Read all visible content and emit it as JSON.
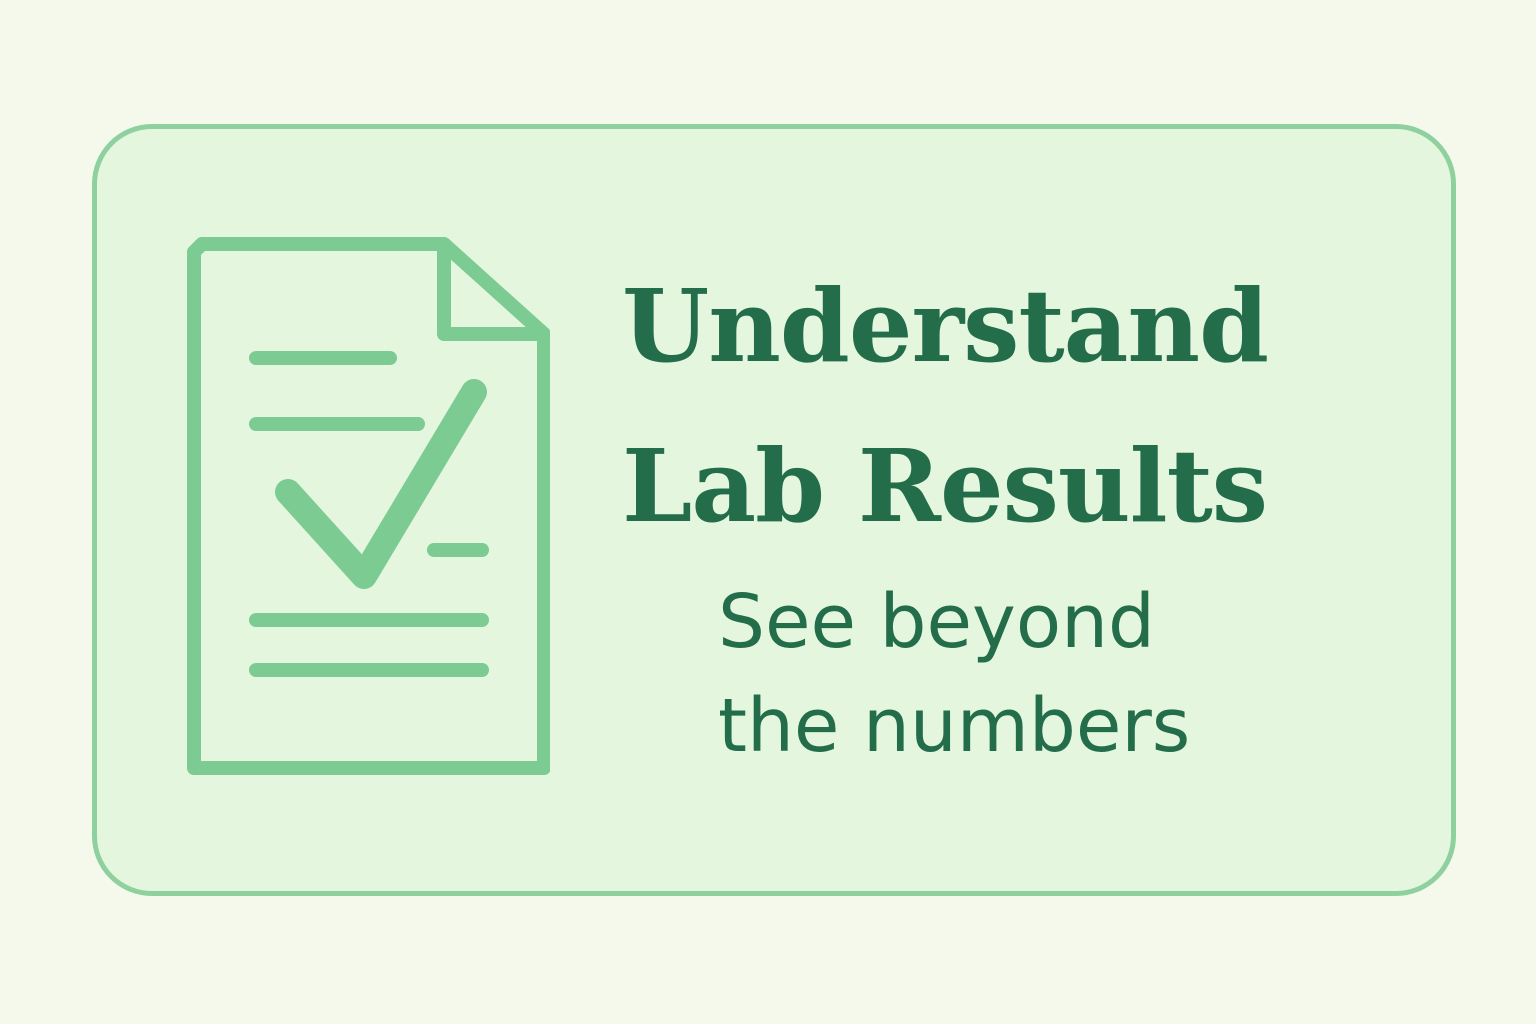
{
  "banner": {
    "title_line1": "Understand",
    "title_line2": "Lab Results",
    "subtitle_line1": "See beyond",
    "subtitle_line2": "the numbers"
  },
  "icon": {
    "name": "document-checkmark-icon"
  },
  "colors": {
    "page_background": "#f4f9ec",
    "card_background": "#e4f6dd",
    "card_border": "#8fd19e",
    "icon_stroke": "#7ccb92",
    "text": "#236d4b"
  }
}
